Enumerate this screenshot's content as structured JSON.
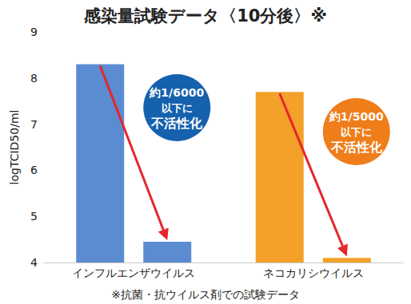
{
  "chart_data": {
    "type": "bar",
    "title": "感染量試験データ〈10分後〉※",
    "y_label": "logTCID50/ml",
    "categories": [
      "インフルエンザウイルス",
      "ネコカリシウイルス"
    ],
    "series": [
      {
        "values": [
          8.3,
          7.7
        ],
        "colors": [
          "#5b8bd1",
          "#f4a12a"
        ]
      },
      {
        "values": [
          4.45,
          4.1
        ],
        "colors": [
          "#5b8bd1",
          "#f4a12a"
        ]
      }
    ],
    "ylim": [
      4,
      9
    ],
    "yticks": [
      4,
      5,
      6,
      7,
      8,
      9
    ],
    "grid": false,
    "data_labels": false,
    "annotations": [
      {
        "category": "インフルエンザウイルス",
        "text": [
          "約1/6000",
          "以下に",
          "不活性化"
        ]
      },
      {
        "category": "ネコカリシウイルス",
        "text": [
          "約1/5000",
          "以下に",
          "不活性化"
        ]
      }
    ],
    "footnote": "※抗菌・抗ウイルス剤での試験データ"
  }
}
